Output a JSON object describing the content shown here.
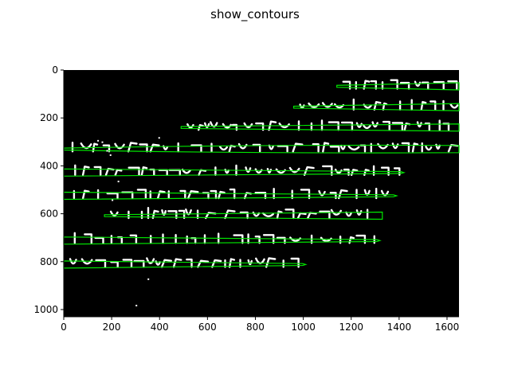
{
  "figure": {
    "title": "show_contours"
  },
  "axes": {
    "x": {
      "ticks": [
        "0",
        "200",
        "400",
        "600",
        "800",
        "1000",
        "1200",
        "1400",
        "1600"
      ],
      "lim": [
        0,
        1650
      ]
    },
    "y": {
      "ticks": [
        "0",
        "200",
        "400",
        "600",
        "800",
        "1000"
      ],
      "lim": [
        0,
        1030
      ]
    }
  },
  "image": {
    "background": "#000000",
    "ink": "#ffffff",
    "contour_color": "#00e600",
    "text_lines": [
      {
        "x0": 1140,
        "x1": 1650,
        "y": 68,
        "wedge": "right"
      },
      {
        "x0": 960,
        "x1": 1650,
        "y": 155,
        "wedge": "right"
      },
      {
        "x0": 490,
        "x1": 1650,
        "y": 240,
        "wedge": "right"
      },
      {
        "x0": 0,
        "x1": 1650,
        "y": 330,
        "wedge": "mid"
      },
      {
        "x0": 0,
        "x1": 1420,
        "y": 428,
        "wedge": "left"
      },
      {
        "x0": 0,
        "x1": 1390,
        "y": 525,
        "wedge": "left"
      },
      {
        "x0": 170,
        "x1": 1330,
        "y": 608,
        "wedge": "right"
      },
      {
        "x0": 0,
        "x1": 1320,
        "y": 712,
        "wedge": "left"
      },
      {
        "x0": 0,
        "x1": 1010,
        "y": 812,
        "wedge": "left"
      }
    ]
  }
}
